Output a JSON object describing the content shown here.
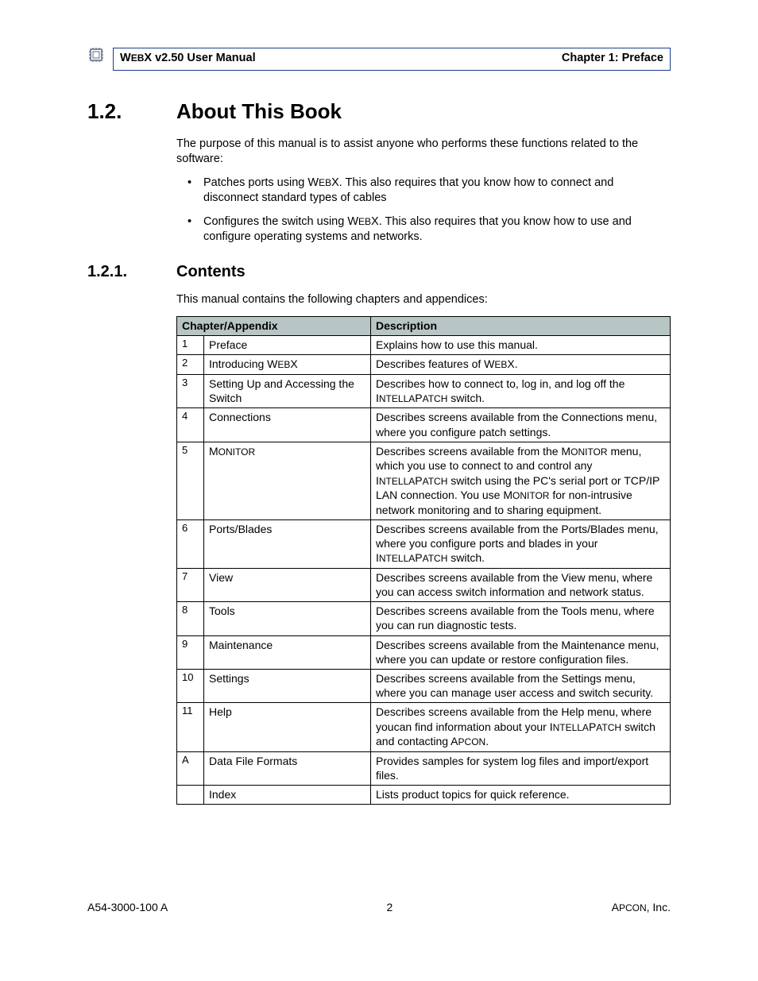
{
  "header": {
    "product": "WebX",
    "version_label": "v2.50 User Manual",
    "chapter": "Chapter 1: Preface"
  },
  "section": {
    "number": "1.2.",
    "title": "About This Book",
    "intro": "The purpose of this manual is to assist anyone who performs these functions related to the software:",
    "bullets": [
      "Patches ports using WebX. This also requires that you know how to connect and disconnect standard types of cables",
      "Configures the switch using WebX. This also requires that you know how to use and configure operating systems and networks."
    ]
  },
  "subsection": {
    "number": "1.2.1.",
    "title": "Contents",
    "intro": "This manual contains the following chapters and appendices:"
  },
  "table": {
    "columns": [
      "Chapter/Appendix",
      "Description"
    ],
    "header_bg": "#b8c5c5",
    "rows": [
      {
        "num": "1",
        "chap": "Preface",
        "desc": "Explains how to use this manual."
      },
      {
        "num": "2",
        "chap": "Introducing WebX",
        "desc": "Describes features of WebX."
      },
      {
        "num": "3",
        "chap": "Setting Up and Accessing the Switch",
        "desc": "Describes how to connect to, log in, and log off the IntellaPatch switch."
      },
      {
        "num": "4",
        "chap": "Connections",
        "desc": "Describes screens available from the Connections menu, where you configure patch settings."
      },
      {
        "num": "5",
        "chap": "Monitor",
        "desc": "Describes screens available from the Monitor menu, which you use to connect to and control any IntellaPatch switch using the PC's serial port or TCP/IP LAN connection. You use Monitor for non-intrusive network monitoring and to sharing equipment."
      },
      {
        "num": "6",
        "chap": "Ports/Blades",
        "desc": "Describes screens available from the Ports/Blades menu, where you configure ports and blades in your IntellaPatch switch."
      },
      {
        "num": "7",
        "chap": "View",
        "desc": "Describes screens available from the View menu, where you can access switch information and network status."
      },
      {
        "num": "8",
        "chap": "Tools",
        "desc": "Describes screens available from the Tools menu, where you can run diagnostic tests."
      },
      {
        "num": "9",
        "chap": "Maintenance",
        "desc": "Describes screens available from the Maintenance menu, where you can update or restore configuration files."
      },
      {
        "num": "10",
        "chap": "Settings",
        "desc": "Describes screens available from the Settings menu, where you can manage user access and switch security."
      },
      {
        "num": "11",
        "chap": "Help",
        "desc": "Describes screens available from the Help menu, where youcan find information about your IntellaPatch switch and contacting Apcon."
      },
      {
        "num": "A",
        "chap": "Data File Formats",
        "desc": "Provides samples for system log files and import/export files."
      },
      {
        "num": "",
        "chap": "Index",
        "desc": "Lists product topics for quick reference."
      }
    ]
  },
  "footer": {
    "doc_id": "A54-3000-100 A",
    "page": "2",
    "company": "Apcon, Inc."
  },
  "style": {
    "border_color": "#1a3d8f",
    "table_header_bg": "#b8c5c5",
    "body_font_size": 14.5,
    "h1_font_size": 26,
    "h2_font_size": 20
  }
}
